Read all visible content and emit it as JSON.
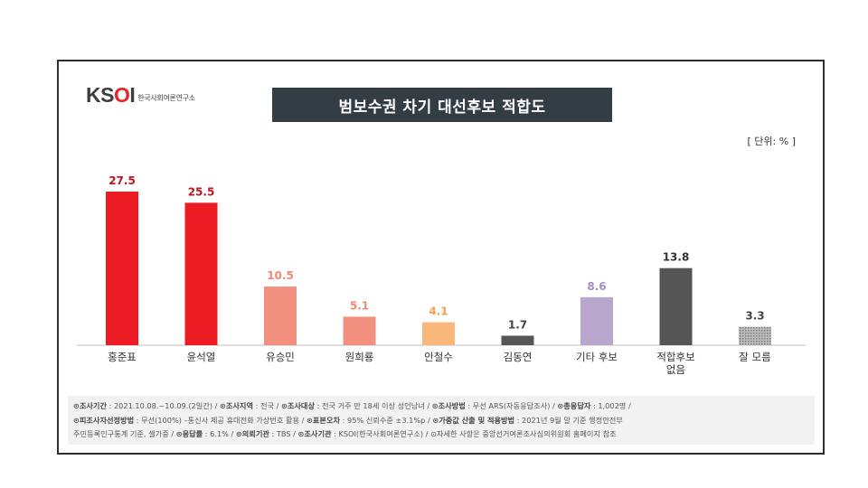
{
  "logo": {
    "brand_k": "K",
    "brand_s": "S",
    "brand_o": "O",
    "brand_i": "I",
    "subtitle": "한국사회여론연구소"
  },
  "header": {
    "title": "범보수권 차기 대선후보 적합도",
    "unit": "[ 단위: % ]"
  },
  "chart_data": {
    "type": "bar",
    "title": "범보수권 차기 대선후보 적합도",
    "ylabel": "단위: %",
    "ylim": [
      0,
      30
    ],
    "categories": [
      "홍준표",
      "윤석열",
      "유승민",
      "원희룡",
      "안철수",
      "김동연",
      "기타 후보",
      "적합후보 없음",
      "잘 모름"
    ],
    "category_lines": [
      [
        "홍준표"
      ],
      [
        "윤석열"
      ],
      [
        "유승민"
      ],
      [
        "원희룡"
      ],
      [
        "안철수"
      ],
      [
        "김동연"
      ],
      [
        "기타 후보"
      ],
      [
        "적합후보",
        "없음"
      ],
      [
        "잘 모름"
      ]
    ],
    "values": [
      27.5,
      25.5,
      10.5,
      5.1,
      4.1,
      1.7,
      8.6,
      13.8,
      3.3
    ],
    "value_labels": [
      "27.5",
      "25.5",
      "10.5",
      "5.1",
      "4.1",
      "1.7",
      "8.6",
      "13.8",
      "3.3"
    ],
    "bar_colors": [
      "#ed1c24",
      "#ed1c24",
      "#f2907f",
      "#f2907f",
      "#fbb77a",
      "#555555",
      "#b9a6cc",
      "#555555",
      "#aaaaaa"
    ],
    "label_colors": [
      "#c0151b",
      "#c0151b",
      "#f08a72",
      "#f08a72",
      "#f5a04f",
      "#444444",
      "#a58fc0",
      "#333333",
      "#444444"
    ]
  },
  "footer": {
    "line1": [
      {
        "k": "⊙조사기간",
        "v": " : 2021.10.08.~10.09.(2일간)  /  "
      },
      {
        "k": "⊙조사지역",
        "v": " : 전국  /  "
      },
      {
        "k": "⊙조사대상",
        "v": " : 전국 거주 만 18세 이상 성인남녀  /  "
      },
      {
        "k": "⊙조사방법",
        "v": " : 무선 ARS(자동응답조사)  /  "
      },
      {
        "k": "⊙총응답자",
        "v": " : 1,002명  /"
      }
    ],
    "line2": [
      {
        "k": "⊙피조사자선정방법",
        "v": " : 무선(100%) –통신사 제공 휴대전화 가상번호 활용  /  "
      },
      {
        "k": "⊙표본오차",
        "v": " : 95% 신뢰수준 ±3.1%p  /  "
      },
      {
        "k": "⊙가중값 산출 및 적용방법",
        "v": " : 2021년 9월 말 기준 행정안전부"
      }
    ],
    "line3": [
      {
        "k": "",
        "v": "주민등록인구통계 기준, 셀가중  /  "
      },
      {
        "k": "⊙응답률",
        "v": " : 6.1%  /  "
      },
      {
        "k": "⊙의뢰기관",
        "v": " : TBS  /  "
      },
      {
        "k": "⊙조사기관",
        "v": " : KSOI(한국사회여론연구소)  /  "
      },
      {
        "k": "",
        "v": "⊙자세한 사항은 중앙선거여론조사심의위원회 홈페이지 참조"
      }
    ]
  }
}
